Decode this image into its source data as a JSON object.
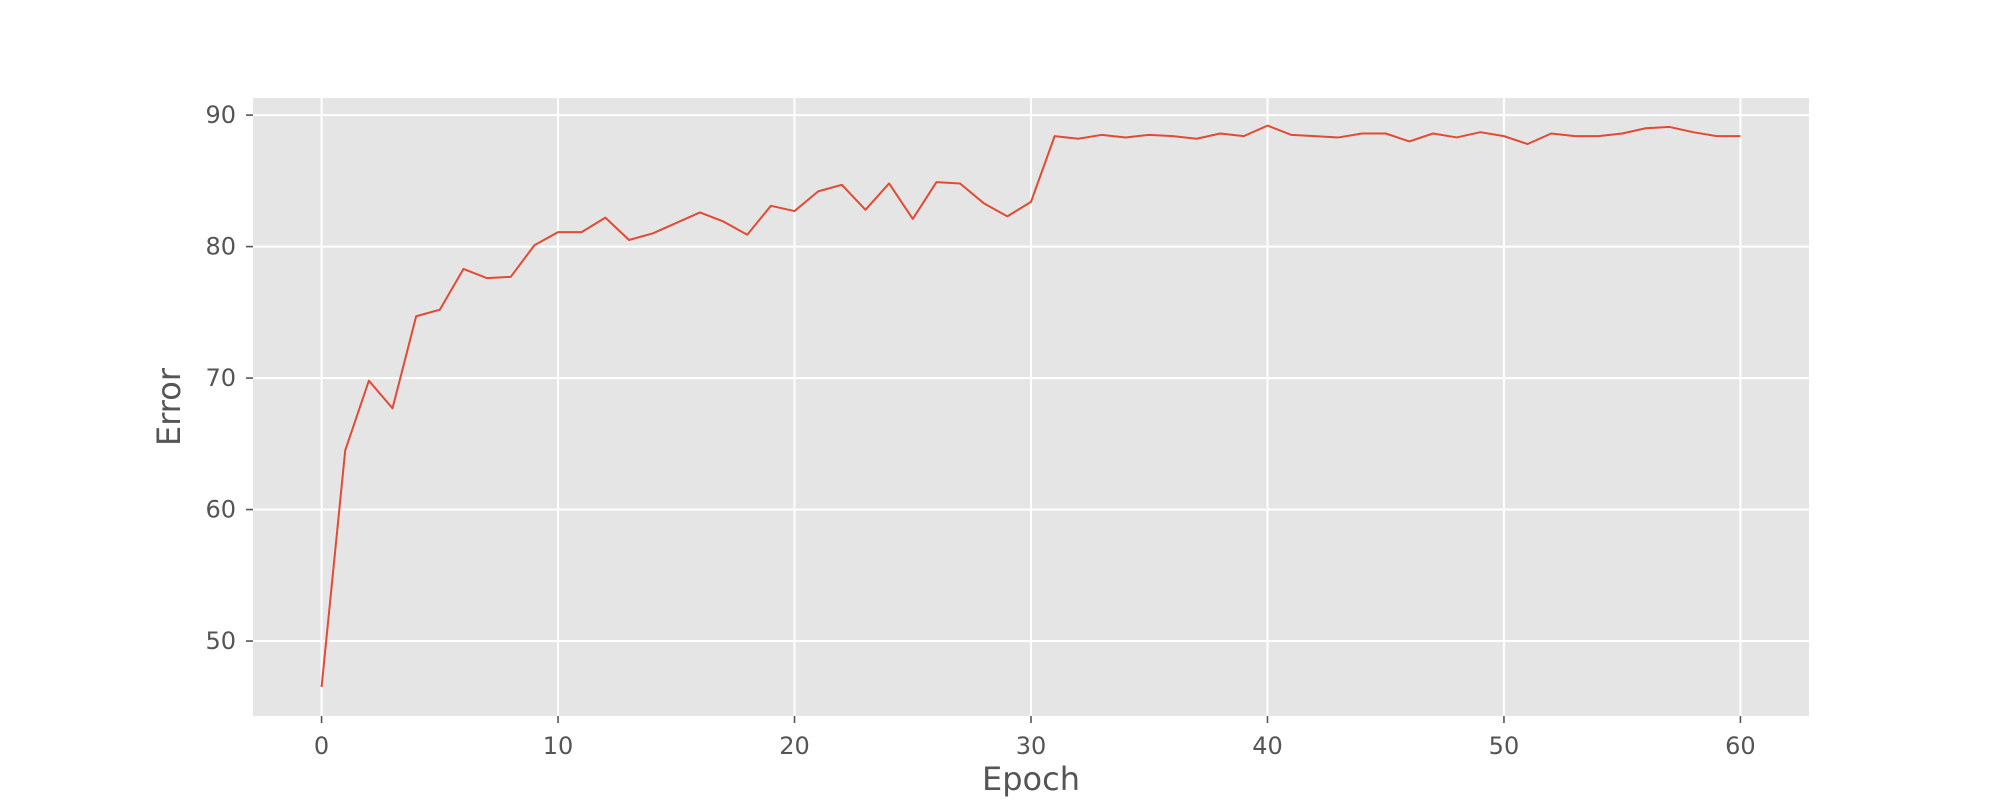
{
  "chart_data": {
    "type": "line",
    "title": "",
    "xlabel": "Epoch",
    "ylabel": "Error",
    "xlim": [
      -2.9,
      62.9
    ],
    "ylim": [
      44.3,
      91.3
    ],
    "xticks": [
      0,
      10,
      20,
      30,
      40,
      50,
      60
    ],
    "yticks": [
      50,
      60,
      70,
      80,
      90
    ],
    "grid": true,
    "style": "ggplot",
    "background_color": "#e5e5e5",
    "series": [
      {
        "color": "#e24a33",
        "x": [
          0,
          1,
          2,
          3,
          4,
          5,
          6,
          7,
          8,
          9,
          10,
          11,
          12,
          13,
          14,
          15,
          16,
          17,
          18,
          19,
          20,
          21,
          22,
          23,
          24,
          25,
          26,
          27,
          28,
          29,
          30,
          31,
          32,
          33,
          34,
          35,
          36,
          37,
          38,
          39,
          40,
          41,
          42,
          43,
          44,
          45,
          46,
          47,
          48,
          49,
          50,
          51,
          52,
          53,
          54,
          55,
          56,
          57,
          58,
          59,
          60
        ],
        "values": [
          46.5,
          64.5,
          69.8,
          67.7,
          74.7,
          75.2,
          78.3,
          77.6,
          77.7,
          80.1,
          81.1,
          81.1,
          82.2,
          80.5,
          81.0,
          81.8,
          82.6,
          81.9,
          80.9,
          83.1,
          82.7,
          84.2,
          84.7,
          82.8,
          84.8,
          82.1,
          84.9,
          84.8,
          83.3,
          82.3,
          83.4,
          88.4,
          88.2,
          88.5,
          88.3,
          88.5,
          88.4,
          88.2,
          88.6,
          88.4,
          89.2,
          88.5,
          88.4,
          88.3,
          88.6,
          88.6,
          88.0,
          88.6,
          88.3,
          88.7,
          88.4,
          87.8,
          88.6,
          88.4,
          88.4,
          88.6,
          89.0,
          89.1,
          88.7,
          88.4,
          88.4
        ]
      }
    ]
  }
}
